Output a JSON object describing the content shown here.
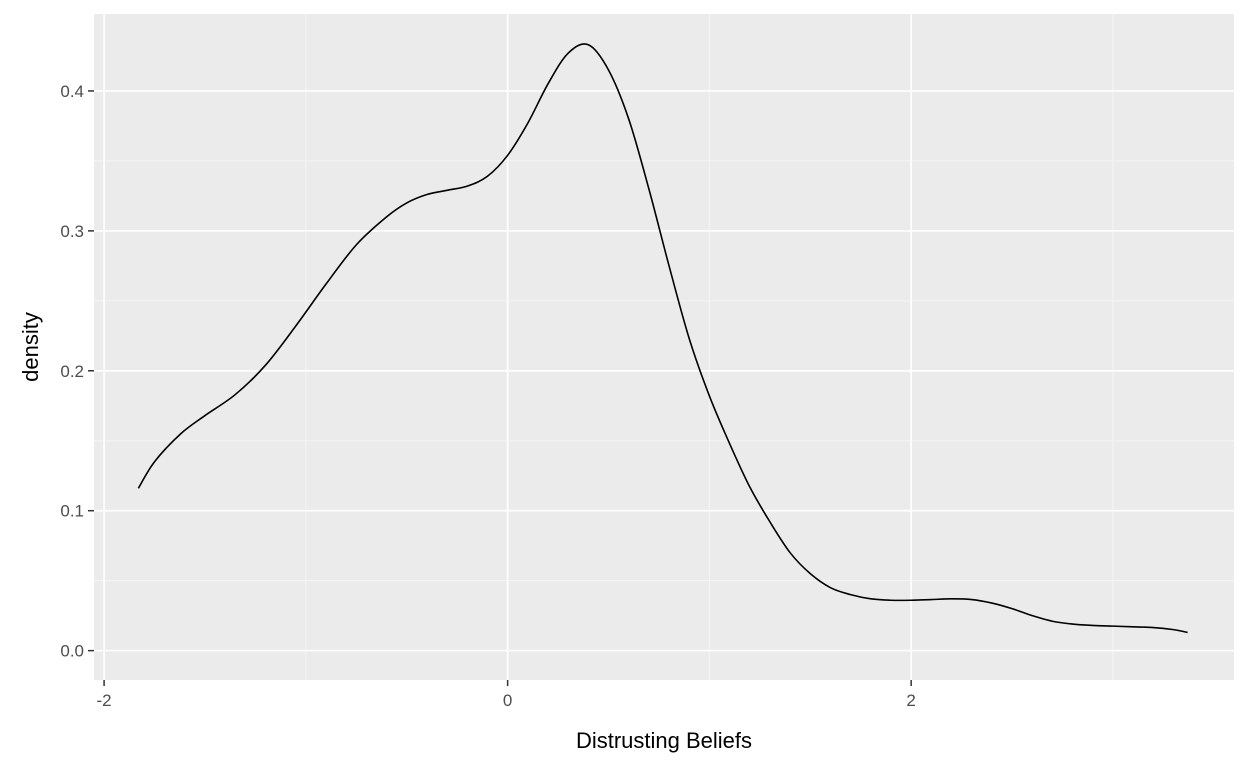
{
  "chart_data": {
    "type": "line",
    "title": "",
    "xlabel": "Distrusting Beliefs",
    "ylabel": "density",
    "xlim": [
      -2.05,
      3.6
    ],
    "ylim": [
      -0.021,
      0.455
    ],
    "grid": true,
    "colors": {
      "panel": "#ebebeb",
      "grid_major": "#ffffff",
      "grid_minor": "#f5f5f5",
      "line": "#000000",
      "tick": "#333333",
      "tick_label": "#4d4d4d",
      "axis_title": "#000000"
    },
    "x_ticks": [
      {
        "value": -2,
        "label": "-2"
      },
      {
        "value": 0,
        "label": "0"
      },
      {
        "value": 2,
        "label": "2"
      }
    ],
    "x_minor_ticks": [
      -1,
      1,
      3
    ],
    "y_ticks": [
      {
        "value": 0.0,
        "label": "0.0"
      },
      {
        "value": 0.1,
        "label": "0.1"
      },
      {
        "value": 0.2,
        "label": "0.2"
      },
      {
        "value": 0.3,
        "label": "0.3"
      },
      {
        "value": 0.4,
        "label": "0.4"
      }
    ],
    "y_minor_ticks": [
      0.05,
      0.15,
      0.25,
      0.35
    ],
    "series": [
      {
        "x": [
          -1.83,
          -1.75,
          -1.62,
          -1.5,
          -1.35,
          -1.2,
          -1.05,
          -0.9,
          -0.75,
          -0.6,
          -0.5,
          -0.4,
          -0.3,
          -0.2,
          -0.1,
          0.0,
          0.1,
          0.2,
          0.3,
          0.4,
          0.5,
          0.6,
          0.7,
          0.8,
          0.9,
          1.0,
          1.1,
          1.2,
          1.3,
          1.4,
          1.5,
          1.6,
          1.7,
          1.8,
          1.9,
          2.0,
          2.1,
          2.2,
          2.3,
          2.4,
          2.5,
          2.6,
          2.7,
          2.8,
          2.9,
          3.0,
          3.1,
          3.2,
          3.3,
          3.37
        ],
        "y": [
          0.116,
          0.135,
          0.155,
          0.168,
          0.183,
          0.204,
          0.232,
          0.262,
          0.29,
          0.31,
          0.32,
          0.326,
          0.329,
          0.332,
          0.339,
          0.354,
          0.377,
          0.405,
          0.427,
          0.433,
          0.415,
          0.38,
          0.33,
          0.275,
          0.223,
          0.182,
          0.148,
          0.117,
          0.092,
          0.07,
          0.055,
          0.045,
          0.04,
          0.037,
          0.036,
          0.036,
          0.0365,
          0.037,
          0.0365,
          0.034,
          0.03,
          0.025,
          0.021,
          0.019,
          0.018,
          0.0175,
          0.017,
          0.0165,
          0.015,
          0.013
        ]
      }
    ]
  }
}
